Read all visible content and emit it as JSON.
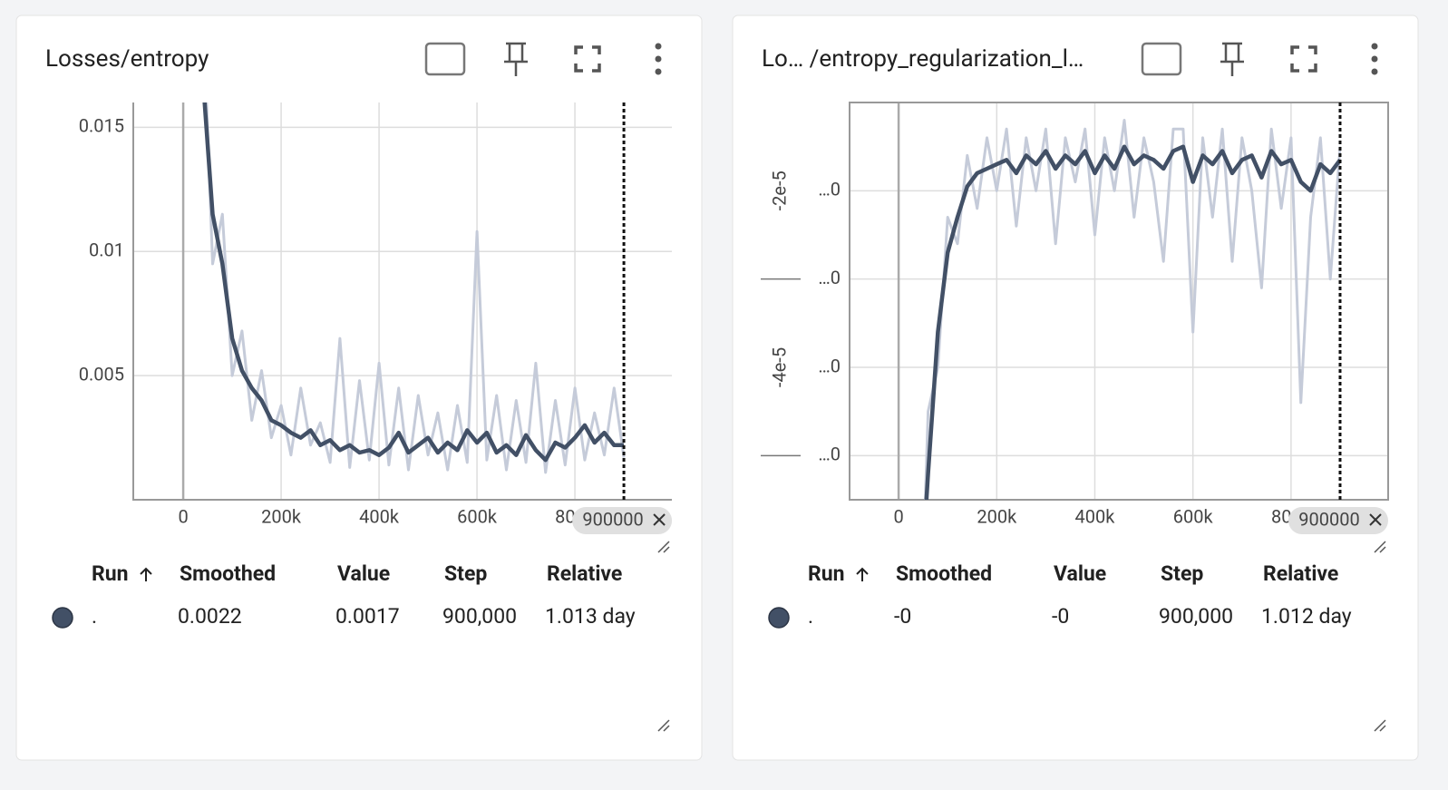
{
  "chart_data": [
    {
      "type": "line",
      "title": "Losses/entropy",
      "x": [
        40000,
        60000,
        80000,
        100000,
        120000,
        140000,
        160000,
        180000,
        200000,
        220000,
        240000,
        260000,
        280000,
        300000,
        320000,
        340000,
        360000,
        380000,
        400000,
        420000,
        440000,
        460000,
        480000,
        500000,
        520000,
        540000,
        560000,
        580000,
        600000,
        620000,
        640000,
        660000,
        680000,
        700000,
        720000,
        740000,
        760000,
        780000,
        800000,
        820000,
        840000,
        860000,
        880000,
        900000
      ],
      "series": [
        {
          "name": "raw",
          "color": "#c5cbd9",
          "values": [
            0.02,
            0.0095,
            0.0115,
            0.005,
            0.0068,
            0.0032,
            0.0052,
            0.0025,
            0.0038,
            0.0018,
            0.0045,
            0.0022,
            0.0031,
            0.0015,
            0.0065,
            0.0013,
            0.0048,
            0.0016,
            0.0055,
            0.0014,
            0.0045,
            0.0012,
            0.0042,
            0.0018,
            0.0035,
            0.0012,
            0.0038,
            0.0015,
            0.0108,
            0.0016,
            0.0042,
            0.0012,
            0.004,
            0.0015,
            0.0055,
            0.0011,
            0.004,
            0.0014,
            0.0045,
            0.0016,
            0.0035,
            0.0018,
            0.0045,
            0.0017
          ]
        },
        {
          "name": "smoothed",
          "color": "#425066",
          "values": [
            0.017,
            0.0115,
            0.0095,
            0.0065,
            0.0052,
            0.0045,
            0.004,
            0.0032,
            0.003,
            0.0027,
            0.0025,
            0.0028,
            0.0022,
            0.0024,
            0.002,
            0.0022,
            0.0019,
            0.002,
            0.0018,
            0.0021,
            0.0027,
            0.0019,
            0.0022,
            0.0025,
            0.0019,
            0.0023,
            0.002,
            0.0028,
            0.0023,
            0.0027,
            0.0019,
            0.0022,
            0.0018,
            0.0026,
            0.002,
            0.0016,
            0.0023,
            0.0021,
            0.0025,
            0.003,
            0.0023,
            0.0027,
            0.0022,
            0.0022
          ]
        }
      ],
      "xlim": [
        -102000,
        998000
      ],
      "xticks": [
        0,
        {
          "value": 200000,
          "label": "200k"
        },
        {
          "value": 400000,
          "label": "400k"
        },
        {
          "value": 600000,
          "label": "600k"
        },
        {
          "value": 800000,
          "label": "800k"
        }
      ],
      "ylim": [
        0,
        0.016
      ],
      "yticks": [
        0.005,
        0.01,
        0.015
      ],
      "grid": true,
      "step_marker": {
        "value": 900000,
        "label": "900000"
      },
      "table": {
        "headers": [
          "Run",
          "Smoothed",
          "Value",
          "Step",
          "Relative"
        ],
        "row": [
          ".",
          "0.0022",
          "0.0017",
          "900,000",
          "1.013 day"
        ]
      }
    },
    {
      "type": "line",
      "title": "Lo… /entropy_regularization_l…",
      "x": [
        40000,
        60000,
        80000,
        100000,
        120000,
        140000,
        160000,
        180000,
        200000,
        220000,
        240000,
        260000,
        280000,
        300000,
        320000,
        340000,
        360000,
        380000,
        400000,
        420000,
        440000,
        460000,
        480000,
        500000,
        520000,
        540000,
        560000,
        580000,
        600000,
        620000,
        640000,
        660000,
        680000,
        700000,
        720000,
        740000,
        760000,
        780000,
        800000,
        820000,
        840000,
        860000,
        880000,
        900000
      ],
      "series": [
        {
          "name": "raw",
          "color": "#c5cbd9",
          "values": [
            -8e-05,
            -4.5e-05,
            -4e-05,
            -2.3e-05,
            -2.6e-05,
            -1.6e-05,
            -2.2e-05,
            -1.4e-05,
            -2e-05,
            -1.3e-05,
            -2.4e-05,
            -1.4e-05,
            -2e-05,
            -1.3e-05,
            -2.6e-05,
            -1.4e-05,
            -1.9e-05,
            -1.3e-05,
            -2.5e-05,
            -1.4e-05,
            -2e-05,
            -1.2e-05,
            -2.3e-05,
            -1.4e-05,
            -1.9e-05,
            -2.8e-05,
            -1.3e-05,
            -1.3e-05,
            -3.6e-05,
            -1.4e-05,
            -2.3e-05,
            -1.3e-05,
            -2.8e-05,
            -1.4e-05,
            -2e-05,
            -3.1e-05,
            -1.3e-05,
            -2.2e-05,
            -1.4e-05,
            -4.4e-05,
            -2.3e-05,
            -1.4e-05,
            -3e-05,
            -1.5e-05
          ]
        },
        {
          "name": "smoothed",
          "color": "#425066",
          "values": [
            -7e-05,
            -5.2e-05,
            -3.6e-05,
            -2.7e-05,
            -2.3e-05,
            -1.95e-05,
            -1.8e-05,
            -1.75e-05,
            -1.7e-05,
            -1.65e-05,
            -1.8e-05,
            -1.6e-05,
            -1.7e-05,
            -1.55e-05,
            -1.75e-05,
            -1.6e-05,
            -1.7e-05,
            -1.55e-05,
            -1.8e-05,
            -1.6e-05,
            -1.75e-05,
            -1.5e-05,
            -1.7e-05,
            -1.6e-05,
            -1.65e-05,
            -1.75e-05,
            -1.55e-05,
            -1.5e-05,
            -1.9e-05,
            -1.6e-05,
            -1.7e-05,
            -1.55e-05,
            -1.8e-05,
            -1.65e-05,
            -1.6e-05,
            -1.85e-05,
            -1.55e-05,
            -1.7e-05,
            -1.65e-05,
            -1.9e-05,
            -2e-05,
            -1.7e-05,
            -1.8e-05,
            -1.65e-05
          ]
        }
      ],
      "xlim": [
        -100000,
        998000
      ],
      "xticks": [
        0,
        {
          "value": 200000,
          "label": "200k"
        },
        {
          "value": 400000,
          "label": "400k"
        },
        {
          "value": 600000,
          "label": "600k"
        },
        {
          "value": 800000,
          "label": "800k"
        }
      ],
      "ylim": [
        -5.5e-05,
        -1e-05
      ],
      "yticks": [
        {
          "value": -2e-05,
          "label": "…0"
        },
        {
          "value": -3e-05,
          "label": "…0"
        },
        {
          "value": -4e-05,
          "label": "…0"
        },
        {
          "value": -5e-05,
          "label": "…0"
        }
      ],
      "y_major_labels": [
        {
          "value": -2e-05,
          "label": "-2e-5"
        },
        {
          "value": -4e-05,
          "label": "-4e-5"
        }
      ],
      "grid": true,
      "step_marker": {
        "value": 900000,
        "label": "900000"
      },
      "table": {
        "headers": [
          "Run",
          "Smoothed",
          "Value",
          "Step",
          "Relative"
        ],
        "row": [
          ".",
          "-0",
          "-0",
          "900,000",
          "1.012 day"
        ]
      }
    }
  ]
}
